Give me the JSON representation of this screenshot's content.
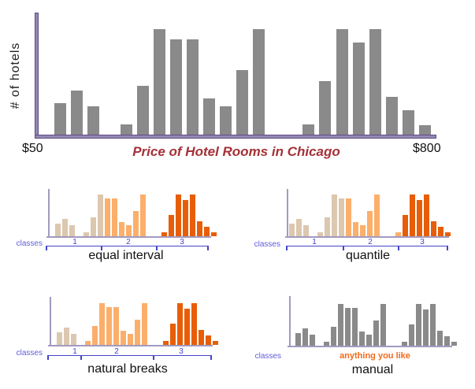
{
  "colors": {
    "bar_gray": "#8a8a8a",
    "class_tan": "#dcc7af",
    "class_orange": "#fbaf6b",
    "class_dark_orange": "#e85d07",
    "axis_purple_fill": "#9488b3",
    "axis_purple_edge": "#5c4a85",
    "small_axis_purple": "#a29ac0",
    "bracket_blue": "#4444cb",
    "classes_label_blue": "#5f5cd9",
    "title_red": "#a43137",
    "note_orange": "#f2691c"
  },
  "main_chart": {
    "ylabel": "# of hotels",
    "x_min_label": "$50",
    "x_max_label": "$800",
    "title": "Price of Hotel Rooms in Chicago"
  },
  "methods": [
    {
      "id": "equal-interval",
      "label": "equal interval",
      "classes_label": "classes",
      "class_numbers": [
        "1",
        "2",
        "3"
      ]
    },
    {
      "id": "quantile",
      "label": "quantile",
      "classes_label": "classes",
      "class_numbers": [
        "1",
        "2",
        "3"
      ]
    },
    {
      "id": "natural-breaks",
      "label": "natural breaks",
      "classes_label": "classes",
      "class_numbers": [
        "1",
        "2",
        "3"
      ]
    },
    {
      "id": "manual",
      "label": "manual",
      "classes_label": "classes",
      "note": "anything you like"
    }
  ],
  "chart_data": [
    {
      "type": "bar",
      "title": "Price of Hotel Rooms in Chicago",
      "ylabel": "# of hotels",
      "x_range_labels": [
        "$50",
        "$800"
      ],
      "ylim": [
        0,
        100
      ],
      "values_note": "relative bar heights in % of tallest bar; 0 = empty histogram slot",
      "values": [
        30,
        42,
        27,
        0,
        10,
        46,
        100,
        90,
        90,
        34,
        27,
        61,
        100,
        0,
        0,
        10,
        51,
        100,
        87,
        100,
        36,
        23,
        9
      ],
      "bar_color_key": "bar_gray"
    },
    {
      "type": "bar",
      "title": "equal interval",
      "values": [
        30,
        42,
        27,
        0,
        10,
        46,
        100,
        90,
        90,
        34,
        27,
        61,
        100,
        0,
        0,
        10,
        51,
        100,
        87,
        100,
        36,
        23,
        9
      ],
      "class_per_slot": [
        "1",
        "1",
        "1",
        0,
        "1",
        "1",
        "1",
        "2",
        "2",
        "2",
        "2",
        "2",
        "2",
        0,
        0,
        "3",
        "3",
        "3",
        "3",
        "3",
        "3",
        "3",
        "3"
      ],
      "class_legend": {
        "1": "tan",
        "2": "light orange",
        "3": "dark orange"
      }
    },
    {
      "type": "bar",
      "title": "quantile",
      "values": [
        30,
        42,
        27,
        0,
        10,
        46,
        100,
        90,
        90,
        34,
        27,
        61,
        100,
        0,
        0,
        10,
        51,
        100,
        87,
        100,
        36,
        23,
        9
      ],
      "class_per_slot": [
        "1",
        "1",
        "1",
        0,
        "1",
        "1",
        "1",
        "1",
        "2",
        "2",
        "2",
        "2",
        "2",
        0,
        0,
        "2",
        "3",
        "3",
        "3",
        "3",
        "3",
        "3",
        "3"
      ],
      "class_legend": {
        "1": "tan",
        "2": "light orange",
        "3": "dark orange"
      }
    },
    {
      "type": "bar",
      "title": "natural breaks",
      "values": [
        30,
        42,
        27,
        0,
        10,
        46,
        100,
        90,
        90,
        34,
        27,
        61,
        100,
        0,
        0,
        10,
        51,
        100,
        87,
        100,
        36,
        23,
        9
      ],
      "class_per_slot": [
        "1",
        "1",
        "1",
        0,
        "2",
        "2",
        "2",
        "2",
        "2",
        "2",
        "2",
        "2",
        "2",
        0,
        0,
        "3",
        "3",
        "3",
        "3",
        "3",
        "3",
        "3",
        "3"
      ],
      "class_legend": {
        "1": "tan",
        "2": "light orange",
        "3": "dark orange"
      }
    },
    {
      "type": "bar",
      "title": "manual",
      "annotation": "anything you like",
      "values": [
        30,
        42,
        27,
        0,
        10,
        46,
        100,
        90,
        90,
        34,
        27,
        61,
        100,
        0,
        0,
        10,
        51,
        100,
        87,
        100,
        36,
        23,
        9
      ],
      "class_per_slot": [
        "g",
        "g",
        "g",
        0,
        "g",
        "g",
        "g",
        "g",
        "g",
        "g",
        "g",
        "g",
        "g",
        0,
        0,
        "g",
        "g",
        "g",
        "g",
        "g",
        "g",
        "g",
        "g"
      ],
      "class_legend": {
        "g": "gray (unclassified)"
      }
    }
  ]
}
